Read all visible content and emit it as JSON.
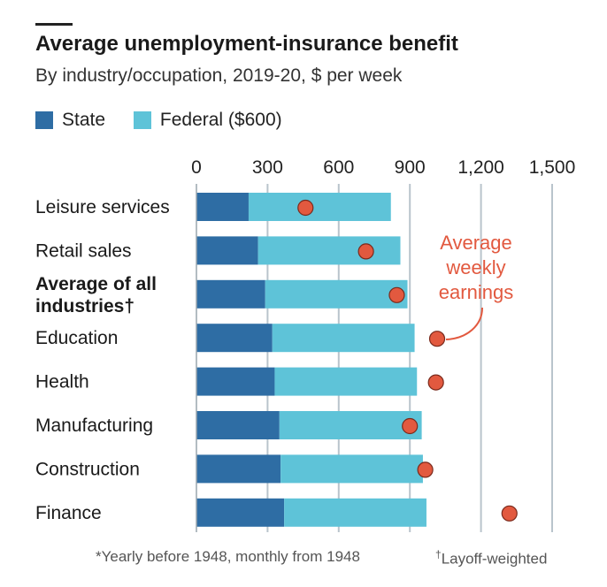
{
  "header": {
    "title": "Average unemployment-insurance benefit",
    "subtitle": "By industry/occupation, 2019-20, $ per week"
  },
  "legend": {
    "state_label": "State",
    "federal_label": "Federal ($600)"
  },
  "footnotes": {
    "left": "*Yearly before 1948, monthly from 1948",
    "dagger": "†",
    "right": "Layoff-weighted"
  },
  "colors": {
    "state": "#2e6da4",
    "federal": "#5ec3d8",
    "earnings": "#e2593f",
    "grid": "#b9c4cc",
    "annotation": "#e2593f"
  },
  "chart_data": {
    "type": "bar",
    "orientation": "horizontal",
    "stacked": true,
    "title": "Average unemployment-insurance benefit",
    "subtitle": "By industry/occupation, 2019-20, $ per week",
    "xlim": [
      0,
      1500
    ],
    "xticks": [
      0,
      300,
      600,
      900,
      1200,
      1500
    ],
    "xtick_labels": [
      "0",
      "300",
      "600",
      "900",
      "1,200",
      "1,500"
    ],
    "categories": [
      {
        "label": [
          "Leisure services"
        ],
        "bold": false
      },
      {
        "label": [
          "Retail sales"
        ],
        "bold": false
      },
      {
        "label": [
          "Average of all",
          "industries†"
        ],
        "bold": true
      },
      {
        "label": [
          "Education"
        ],
        "bold": false
      },
      {
        "label": [
          "Health"
        ],
        "bold": false
      },
      {
        "label": [
          "Manufacturing"
        ],
        "bold": false
      },
      {
        "label": [
          "Construction"
        ],
        "bold": false
      },
      {
        "label": [
          "Finance"
        ],
        "bold": false
      }
    ],
    "series": [
      {
        "name": "State",
        "values": [
          220,
          260,
          290,
          320,
          330,
          350,
          355,
          370
        ]
      },
      {
        "name": "Federal ($600)",
        "values": [
          600,
          600,
          600,
          600,
          600,
          600,
          600,
          600
        ]
      }
    ],
    "markers": {
      "name": "Average weekly earnings",
      "values": [
        460,
        715,
        845,
        1015,
        1010,
        900,
        965,
        1320
      ]
    },
    "annotation": [
      "Average",
      "weekly",
      "earnings"
    ]
  }
}
